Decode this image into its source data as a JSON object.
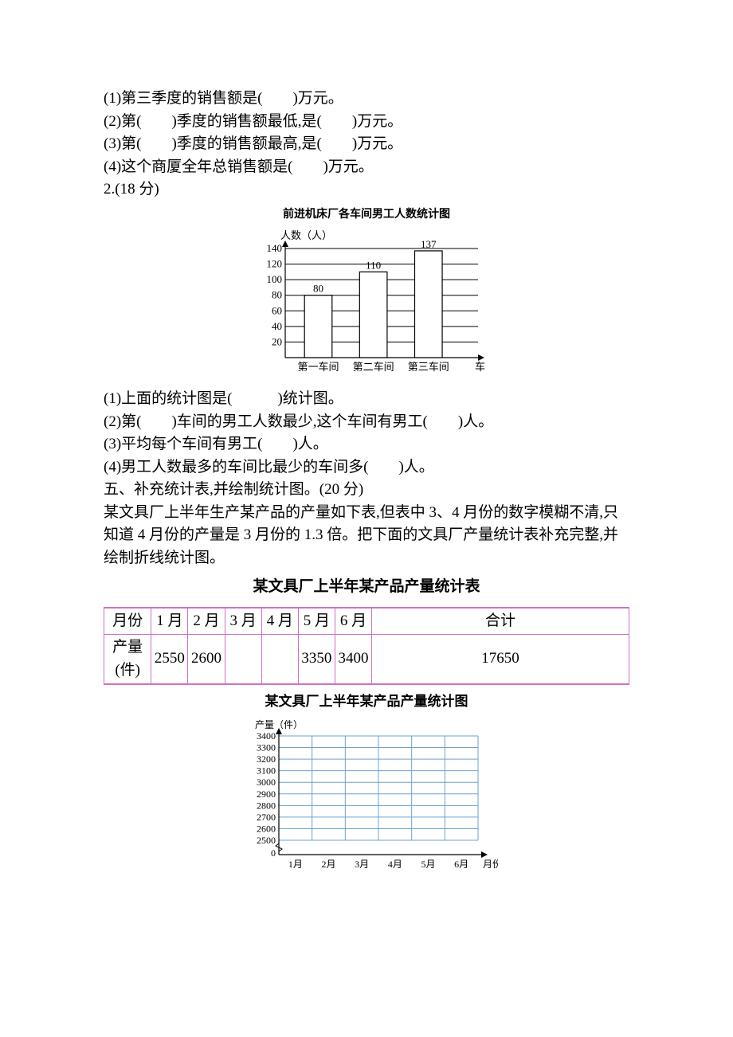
{
  "q1": {
    "l1": "(1)第三季度的销售额是(　　)万元。",
    "l2": "(2)第(　　)季度的销售额最低,是(　　)万元。",
    "l3": "(3)第(　　)季度的销售额最高,是(　　)万元。",
    "l4": "(4)这个商厦全年总销售额是(　　)万元。"
  },
  "q2": {
    "heading": "2.(18 分)",
    "chart": {
      "title": "前进机床厂各车间男工人数统计图",
      "ylabel": "人数（人）",
      "xlabel": "车间",
      "categories": [
        "第一车间",
        "第二车间",
        "第三车间"
      ],
      "values": [
        80,
        110,
        137
      ],
      "ylim": [
        0,
        140
      ],
      "ytick_step": 20,
      "bar_fill": "#ffffff",
      "bar_stroke": "#000000",
      "axis_color": "#000000",
      "grid_color": "#000000",
      "font_size": 13
    },
    "l1": "(1)上面的统计图是(　　　)统计图。",
    "l2": "(2)第(　　)车间的男工人数最少,这个车间有男工(　　)人。",
    "l3": "(3)平均每个车间有男工(　　)人。",
    "l4": "(4)男工人数最多的车间比最少的车间多(　　)人。"
  },
  "q5": {
    "heading": "五、补充统计表,并绘制统计图。(20 分)",
    "desc1": "某文具厂上半年生产某产品的产量如下表,但表中 3、4 月份的数字模糊不清,只知道 4 月份的产量是 3 月份的 1.3 倍。把下面的文具厂产量统计表补充完整,并绘制折线统计图。",
    "table_title": "某文具厂上半年某产品产量统计表",
    "table": {
      "header": [
        "月份",
        "1 月",
        "2 月",
        "3 月",
        "4 月",
        "5 月",
        "6 月",
        "合计"
      ],
      "row_label": "产量(件)",
      "values": [
        "2550",
        "2600",
        "",
        "",
        "3350",
        "3400",
        "17650"
      ]
    },
    "chart": {
      "title": "某文具厂上半年某产品产量统计图",
      "ylabel": "产量（件）",
      "xlabel": "月份",
      "categories": [
        "1月",
        "2月",
        "3月",
        "4月",
        "5月",
        "6月"
      ],
      "ylim": [
        2500,
        3400
      ],
      "yticks": [
        0,
        2500,
        2600,
        2700,
        2800,
        2900,
        3000,
        3100,
        3200,
        3300,
        3400
      ],
      "grid_color": "#6fa0d0",
      "axis_color": "#000000",
      "font_size": 12
    }
  }
}
